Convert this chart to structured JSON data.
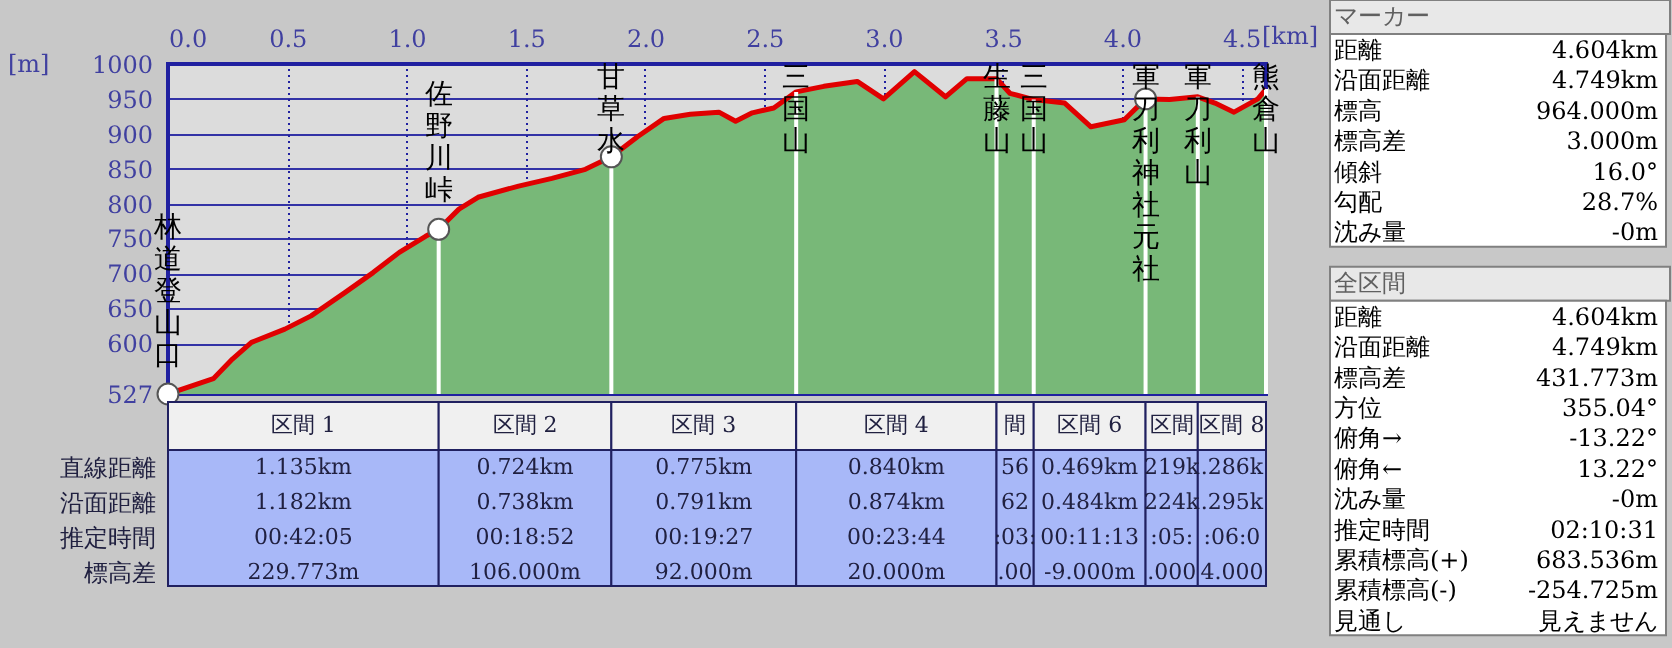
{
  "chart_data": {
    "type": "area",
    "xlabel": "[km]",
    "ylabel": "[m]",
    "xlim": [
      0,
      4.604
    ],
    "ylim": [
      527,
      1000
    ],
    "xticks": [
      {
        "value": 0,
        "label": "0.0"
      },
      {
        "value": 0.5,
        "label": "0.5"
      },
      {
        "value": 1,
        "label": "1.0"
      },
      {
        "value": 1.5,
        "label": "1.5"
      },
      {
        "value": 2,
        "label": "2.0"
      },
      {
        "value": 2.5,
        "label": "2.5"
      },
      {
        "value": 3,
        "label": "3.0"
      },
      {
        "value": 3.5,
        "label": "3.5"
      },
      {
        "value": 4,
        "label": "4.0"
      },
      {
        "value": 4.5,
        "label": "4.5"
      }
    ],
    "yticks": [
      527,
      600,
      650,
      700,
      750,
      800,
      850,
      900,
      950,
      1000
    ],
    "grid": true,
    "series": [
      {
        "color": "#78b878",
        "x": [
          0,
          0.19,
          0.27,
          0.35,
          0.49,
          0.6,
          0.74,
          0.86,
          0.97,
          1.08,
          1.135,
          1.22,
          1.3,
          1.47,
          1.61,
          1.75,
          1.859,
          1.97,
          2.08,
          2.19,
          2.31,
          2.38,
          2.45,
          2.54,
          2.634,
          2.75,
          2.89,
          3.0,
          3.13,
          3.26,
          3.35,
          3.474,
          3.53,
          3.63,
          3.76,
          3.87,
          4.01,
          4.099,
          4.2,
          4.318,
          4.39,
          4.47,
          4.57,
          4.604
        ],
        "values": [
          527,
          549,
          577,
          601,
          620,
          639,
          672,
          701,
          730,
          753,
          763,
          792,
          809,
          825,
          836,
          849,
          867,
          896,
          922,
          928,
          931,
          918,
          930,
          937,
          960,
          968,
          975,
          950,
          989,
          953,
          979,
          979,
          958,
          949,
          944,
          910,
          920,
          950,
          949,
          953,
          944,
          931,
          950,
          964
        ]
      },
      {
        "type": "scatter",
        "marker": "circle",
        "color": "#ffffff",
        "x": [
          0,
          1.135,
          1.859,
          4.099
        ],
        "values": [
          527,
          763,
          867,
          950
        ]
      }
    ],
    "annotations": [
      {
        "text": "林道登山口",
        "x": 0,
        "y": 527
      },
      {
        "text": "佐野川峠",
        "x": 1.135,
        "y": 763
      },
      {
        "text": "甘草水",
        "x": 1.859,
        "y": 867
      },
      {
        "text": "三国山",
        "x": 2.634,
        "y": 960
      },
      {
        "text": "生藤山",
        "x": 3.474,
        "y": 979
      },
      {
        "text": "三国山",
        "x": 3.63,
        "y": 949
      },
      {
        "text": "軍刀利神社元社",
        "x": 4.099,
        "y": 950
      },
      {
        "text": "軍刀利山",
        "x": 4.318,
        "y": 953
      },
      {
        "text": "熊倉山",
        "x": 4.604,
        "y": 964
      },
      "直線距離",
      "沿面距離",
      "推定時間",
      "標高差",
      "区間 1",
      "区間 2",
      "区間 3",
      "区間 4",
      "間",
      "区間 6",
      "区間",
      "区間 8",
      "1.135km",
      "0.724km",
      "0.775km",
      "0.840km",
      "56",
      "0.469km",
      "219k",
      ".286k",
      "1.182km",
      "0.738km",
      "0.791km",
      "0.874km",
      "62",
      "0.484km",
      "224k",
      ".295k",
      "00:42:05",
      "00:18:52",
      "00:19:27",
      "00:23:44",
      ":03:",
      "00:11:13",
      ":05:",
      ":06:0",
      "229.773m",
      "106.000m",
      "92.000m",
      "20.000m",
      ".00",
      "-9.000m",
      ".000",
      "4.000",
      "マーカー",
      "距離",
      "4.604km",
      "沿面距離",
      "4.749km",
      "標高",
      "964.000m",
      "標高差",
      "3.000m",
      "傾斜",
      "16.0°",
      "勾配",
      "28.7%",
      "沈み量",
      "-0m",
      "全区間",
      "距離",
      "4.604km",
      "沿面距離",
      "4.749km",
      "標高差",
      "431.773m",
      "方位",
      "355.04°",
      "俯角→",
      "-13.22°",
      "俯角←",
      "13.22°",
      "沈み量",
      "-0m",
      "推定時間",
      "02:10:31",
      "累積標高(+)",
      "683.536m",
      "累積標高(-)",
      "-254.725m",
      "見通し",
      "見えません"
    ]
  }
}
